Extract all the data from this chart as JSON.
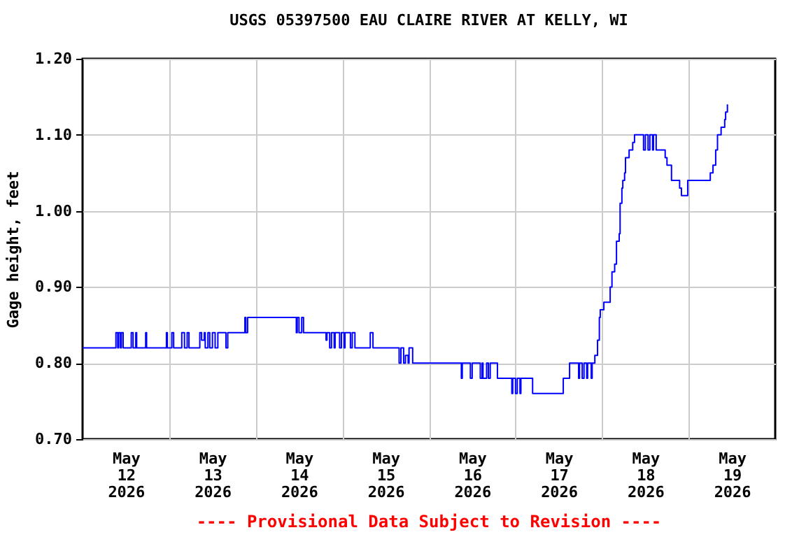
{
  "chart_data": {
    "type": "step",
    "title": "USGS 05397500 EAU CLAIRE RIVER AT KELLY, WI",
    "ylabel": "Gage height, feet",
    "annotations": [
      "---- Provisional Data Subject to Revision ----"
    ],
    "x": [
      "2026-05-12T00:00",
      "2026-05-12T09:15",
      "2026-05-12T09:45",
      "2026-05-12T10:00",
      "2026-05-12T10:30",
      "2026-05-12T10:45",
      "2026-05-12T11:15",
      "2026-05-12T13:30",
      "2026-05-12T14:00",
      "2026-05-12T14:45",
      "2026-05-12T15:00",
      "2026-05-12T17:30",
      "2026-05-12T17:45",
      "2026-05-12T23:15",
      "2026-05-12T23:30",
      "2026-05-13T00:45",
      "2026-05-13T01:15",
      "2026-05-13T03:30",
      "2026-05-13T04:15",
      "2026-05-13T05:00",
      "2026-05-13T05:30",
      "2026-05-13T08:30",
      "2026-05-13T09:00",
      "2026-05-13T09:45",
      "2026-05-13T10:00",
      "2026-05-13T10:45",
      "2026-05-13T11:15",
      "2026-05-13T12:00",
      "2026-05-13T12:45",
      "2026-05-13T13:30",
      "2026-05-13T15:45",
      "2026-05-13T16:15",
      "2026-05-13T21:00",
      "2026-05-13T21:15",
      "2026-05-13T21:45",
      "2026-05-14T11:15",
      "2026-05-14T11:30",
      "2026-05-14T12:00",
      "2026-05-14T12:45",
      "2026-05-14T13:15",
      "2026-05-14T19:30",
      "2026-05-14T19:45",
      "2026-05-14T20:30",
      "2026-05-14T21:00",
      "2026-05-14T21:45",
      "2026-05-14T22:00",
      "2026-05-14T23:15",
      "2026-05-14T23:45",
      "2026-05-15T00:30",
      "2026-05-15T00:45",
      "2026-05-15T02:15",
      "2026-05-15T02:45",
      "2026-05-15T03:30",
      "2026-05-15T07:45",
      "2026-05-15T08:30",
      "2026-05-15T15:45",
      "2026-05-15T16:15",
      "2026-05-15T17:00",
      "2026-05-15T17:30",
      "2026-05-15T18:15",
      "2026-05-15T18:30",
      "2026-05-15T19:30",
      "2026-05-16T09:00",
      "2026-05-16T09:15",
      "2026-05-16T11:30",
      "2026-05-16T12:00",
      "2026-05-16T14:15",
      "2026-05-16T14:45",
      "2026-05-16T15:00",
      "2026-05-16T16:00",
      "2026-05-16T16:30",
      "2026-05-16T17:00",
      "2026-05-16T19:00",
      "2026-05-16T23:00",
      "2026-05-16T23:15",
      "2026-05-17T00:00",
      "2026-05-17T00:30",
      "2026-05-17T01:15",
      "2026-05-17T01:30",
      "2026-05-17T04:45",
      "2026-05-17T13:15",
      "2026-05-17T15:00",
      "2026-05-17T17:30",
      "2026-05-17T17:45",
      "2026-05-17T18:30",
      "2026-05-17T19:00",
      "2026-05-17T19:45",
      "2026-05-17T20:00",
      "2026-05-17T21:00",
      "2026-05-17T21:15",
      "2026-05-17T22:00",
      "2026-05-17T22:45",
      "2026-05-17T23:15",
      "2026-05-17T23:30",
      "2026-05-18T00:30",
      "2026-05-18T02:15",
      "2026-05-18T02:45",
      "2026-05-18T03:30",
      "2026-05-18T04:00",
      "2026-05-18T04:45",
      "2026-05-18T05:00",
      "2026-05-18T05:30",
      "2026-05-18T05:45",
      "2026-05-18T06:15",
      "2026-05-18T06:30",
      "2026-05-18T07:30",
      "2026-05-18T08:30",
      "2026-05-18T09:00",
      "2026-05-18T11:30",
      "2026-05-18T12:00",
      "2026-05-18T12:45",
      "2026-05-18T13:15",
      "2026-05-18T14:00",
      "2026-05-18T14:15",
      "2026-05-18T15:00",
      "2026-05-18T17:30",
      "2026-05-18T18:00",
      "2026-05-18T19:15",
      "2026-05-18T21:30",
      "2026-05-18T22:00",
      "2026-05-18T23:45",
      "2026-05-19T06:00",
      "2026-05-19T06:45",
      "2026-05-19T07:30",
      "2026-05-19T08:00",
      "2026-05-19T09:00",
      "2026-05-19T10:00",
      "2026-05-19T10:15",
      "2026-05-19T10:45"
    ],
    "series": [
      {
        "color": "#0000ff",
        "values": [
          0.82,
          0.84,
          0.82,
          0.84,
          0.82,
          0.84,
          0.82,
          0.84,
          0.82,
          0.84,
          0.82,
          0.84,
          0.82,
          0.84,
          0.82,
          0.84,
          0.82,
          0.84,
          0.82,
          0.84,
          0.82,
          0.84,
          0.83,
          0.84,
          0.82,
          0.84,
          0.82,
          0.84,
          0.82,
          0.84,
          0.82,
          0.84,
          0.86,
          0.84,
          0.86,
          0.84,
          0.86,
          0.84,
          0.86,
          0.84,
          0.83,
          0.84,
          0.82,
          0.84,
          0.82,
          0.84,
          0.82,
          0.84,
          0.82,
          0.84,
          0.82,
          0.84,
          0.82,
          0.84,
          0.82,
          0.8,
          0.82,
          0.8,
          0.81,
          0.8,
          0.82,
          0.8,
          0.78,
          0.8,
          0.78,
          0.8,
          0.78,
          0.8,
          0.78,
          0.8,
          0.78,
          0.8,
          0.78,
          0.76,
          0.78,
          0.76,
          0.78,
          0.76,
          0.78,
          0.76,
          0.78,
          0.8,
          0.78,
          0.8,
          0.78,
          0.8,
          0.78,
          0.8,
          0.78,
          0.8,
          0.81,
          0.83,
          0.86,
          0.87,
          0.88,
          0.9,
          0.92,
          0.93,
          0.96,
          0.97,
          1.01,
          1.03,
          1.04,
          1.05,
          1.07,
          1.08,
          1.09,
          1.1,
          1.08,
          1.1,
          1.08,
          1.1,
          1.08,
          1.1,
          1.08,
          1.07,
          1.06,
          1.04,
          1.03,
          1.02,
          1.04,
          1.05,
          1.06,
          1.08,
          1.1,
          1.11,
          1.12,
          1.13,
          1.14
        ]
      }
    ],
    "xlim": [
      "2026-05-12T00:00",
      "2026-05-20T00:00"
    ],
    "xticks": [
      {
        "value": "2026-05-12T12:00",
        "label": "May\n12\n2026"
      },
      {
        "value": "2026-05-13T12:00",
        "label": "May\n13\n2026"
      },
      {
        "value": "2026-05-14T12:00",
        "label": "May\n14\n2026"
      },
      {
        "value": "2026-05-15T12:00",
        "label": "May\n15\n2026"
      },
      {
        "value": "2026-05-16T12:00",
        "label": "May\n16\n2026"
      },
      {
        "value": "2026-05-17T12:00",
        "label": "May\n17\n2026"
      },
      {
        "value": "2026-05-18T12:00",
        "label": "May\n18\n2026"
      },
      {
        "value": "2026-05-19T12:00",
        "label": "May\n19\n2026"
      },
      {
        "value": "2026-05-13T00:00",
        "label": null
      },
      {
        "value": "2026-05-14T00:00",
        "label": null
      },
      {
        "value": "2026-05-15T00:00",
        "label": null
      },
      {
        "value": "2026-05-16T00:00",
        "label": null
      },
      {
        "value": "2026-05-17T00:00",
        "label": null
      },
      {
        "value": "2026-05-18T00:00",
        "label": null
      },
      {
        "value": "2026-05-19T00:00",
        "label": null
      }
    ],
    "ylim": [
      0.7,
      1.2
    ],
    "yticks": [
      {
        "value": 0.7,
        "label": "0.70"
      },
      {
        "value": 0.8,
        "label": "0.80"
      },
      {
        "value": 0.9,
        "label": "0.90"
      },
      {
        "value": 1.0,
        "label": "1.00"
      },
      {
        "value": 1.1,
        "label": "1.10"
      },
      {
        "value": 1.2,
        "label": "1.20"
      }
    ],
    "grid": true,
    "line_style": "solid"
  }
}
